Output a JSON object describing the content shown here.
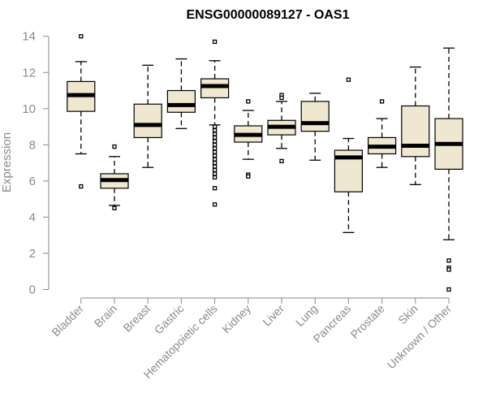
{
  "chart_data": {
    "type": "boxplot",
    "title": "ENSG00000089127 - OAS1",
    "xlabel": "",
    "ylabel": "Expression",
    "ylim": [
      0,
      14
    ],
    "yticks": [
      0,
      2,
      4,
      6,
      8,
      10,
      12,
      14
    ],
    "grid": false,
    "colors": {
      "box_fill": "#efe7cf",
      "box_stroke": "#000000",
      "axis": "#8a8a8a"
    },
    "categories": [
      "Bladder",
      "Brain",
      "Breast",
      "Gastric",
      "Hematopoietic cells",
      "Kidney",
      "Liver",
      "Lung",
      "Pancreas",
      "Prostate",
      "Skin",
      "Unknown / Other"
    ],
    "boxes": [
      {
        "category": "Bladder",
        "whisker_low": 7.5,
        "q1": 9.85,
        "median": 10.75,
        "q3": 11.5,
        "whisker_high": 12.6,
        "outliers": [
          5.7,
          14.0
        ]
      },
      {
        "category": "Brain",
        "whisker_low": 4.65,
        "q1": 5.6,
        "median": 6.05,
        "q3": 6.4,
        "whisker_high": 7.35,
        "outliers": [
          4.5,
          7.9
        ]
      },
      {
        "category": "Breast",
        "whisker_low": 6.75,
        "q1": 8.4,
        "median": 9.1,
        "q3": 10.25,
        "whisker_high": 12.4,
        "outliers": []
      },
      {
        "category": "Gastric",
        "whisker_low": 8.9,
        "q1": 9.8,
        "median": 10.2,
        "q3": 11.0,
        "whisker_high": 12.75,
        "outliers": []
      },
      {
        "category": "Hematopoietic cells",
        "whisker_low": 9.1,
        "q1": 10.6,
        "median": 11.25,
        "q3": 11.65,
        "whisker_high": 12.65,
        "outliers": [
          13.7,
          9.0,
          8.8,
          8.6,
          8.4,
          8.2,
          8.0,
          7.8,
          7.6,
          7.4,
          7.2,
          7.0,
          6.8,
          6.6,
          6.4,
          6.2,
          5.6,
          4.7
        ]
      },
      {
        "category": "Kidney",
        "whisker_low": 7.2,
        "q1": 8.15,
        "median": 8.55,
        "q3": 9.05,
        "whisker_high": 9.9,
        "outliers": [
          10.4,
          6.35,
          6.25
        ]
      },
      {
        "category": "Liver",
        "whisker_low": 7.8,
        "q1": 8.55,
        "median": 9.0,
        "q3": 9.35,
        "whisker_high": 10.4,
        "outliers": [
          10.75,
          10.6,
          7.1
        ]
      },
      {
        "category": "Lung",
        "whisker_low": 7.15,
        "q1": 8.75,
        "median": 9.2,
        "q3": 10.4,
        "whisker_high": 10.85,
        "outliers": []
      },
      {
        "category": "Pancreas",
        "whisker_low": 3.15,
        "q1": 5.4,
        "median": 7.3,
        "q3": 7.7,
        "whisker_high": 8.35,
        "outliers": [
          11.6
        ]
      },
      {
        "category": "Prostate",
        "whisker_low": 6.75,
        "q1": 7.5,
        "median": 7.9,
        "q3": 8.4,
        "whisker_high": 9.45,
        "outliers": [
          10.4
        ]
      },
      {
        "category": "Skin",
        "whisker_low": 5.8,
        "q1": 7.35,
        "median": 7.95,
        "q3": 10.15,
        "whisker_high": 12.3,
        "outliers": []
      },
      {
        "category": "Unknown / Other",
        "whisker_low": 2.75,
        "q1": 6.65,
        "median": 8.05,
        "q3": 9.45,
        "whisker_high": 13.35,
        "outliers": [
          1.6,
          1.2,
          1.1,
          0.0
        ]
      }
    ]
  }
}
